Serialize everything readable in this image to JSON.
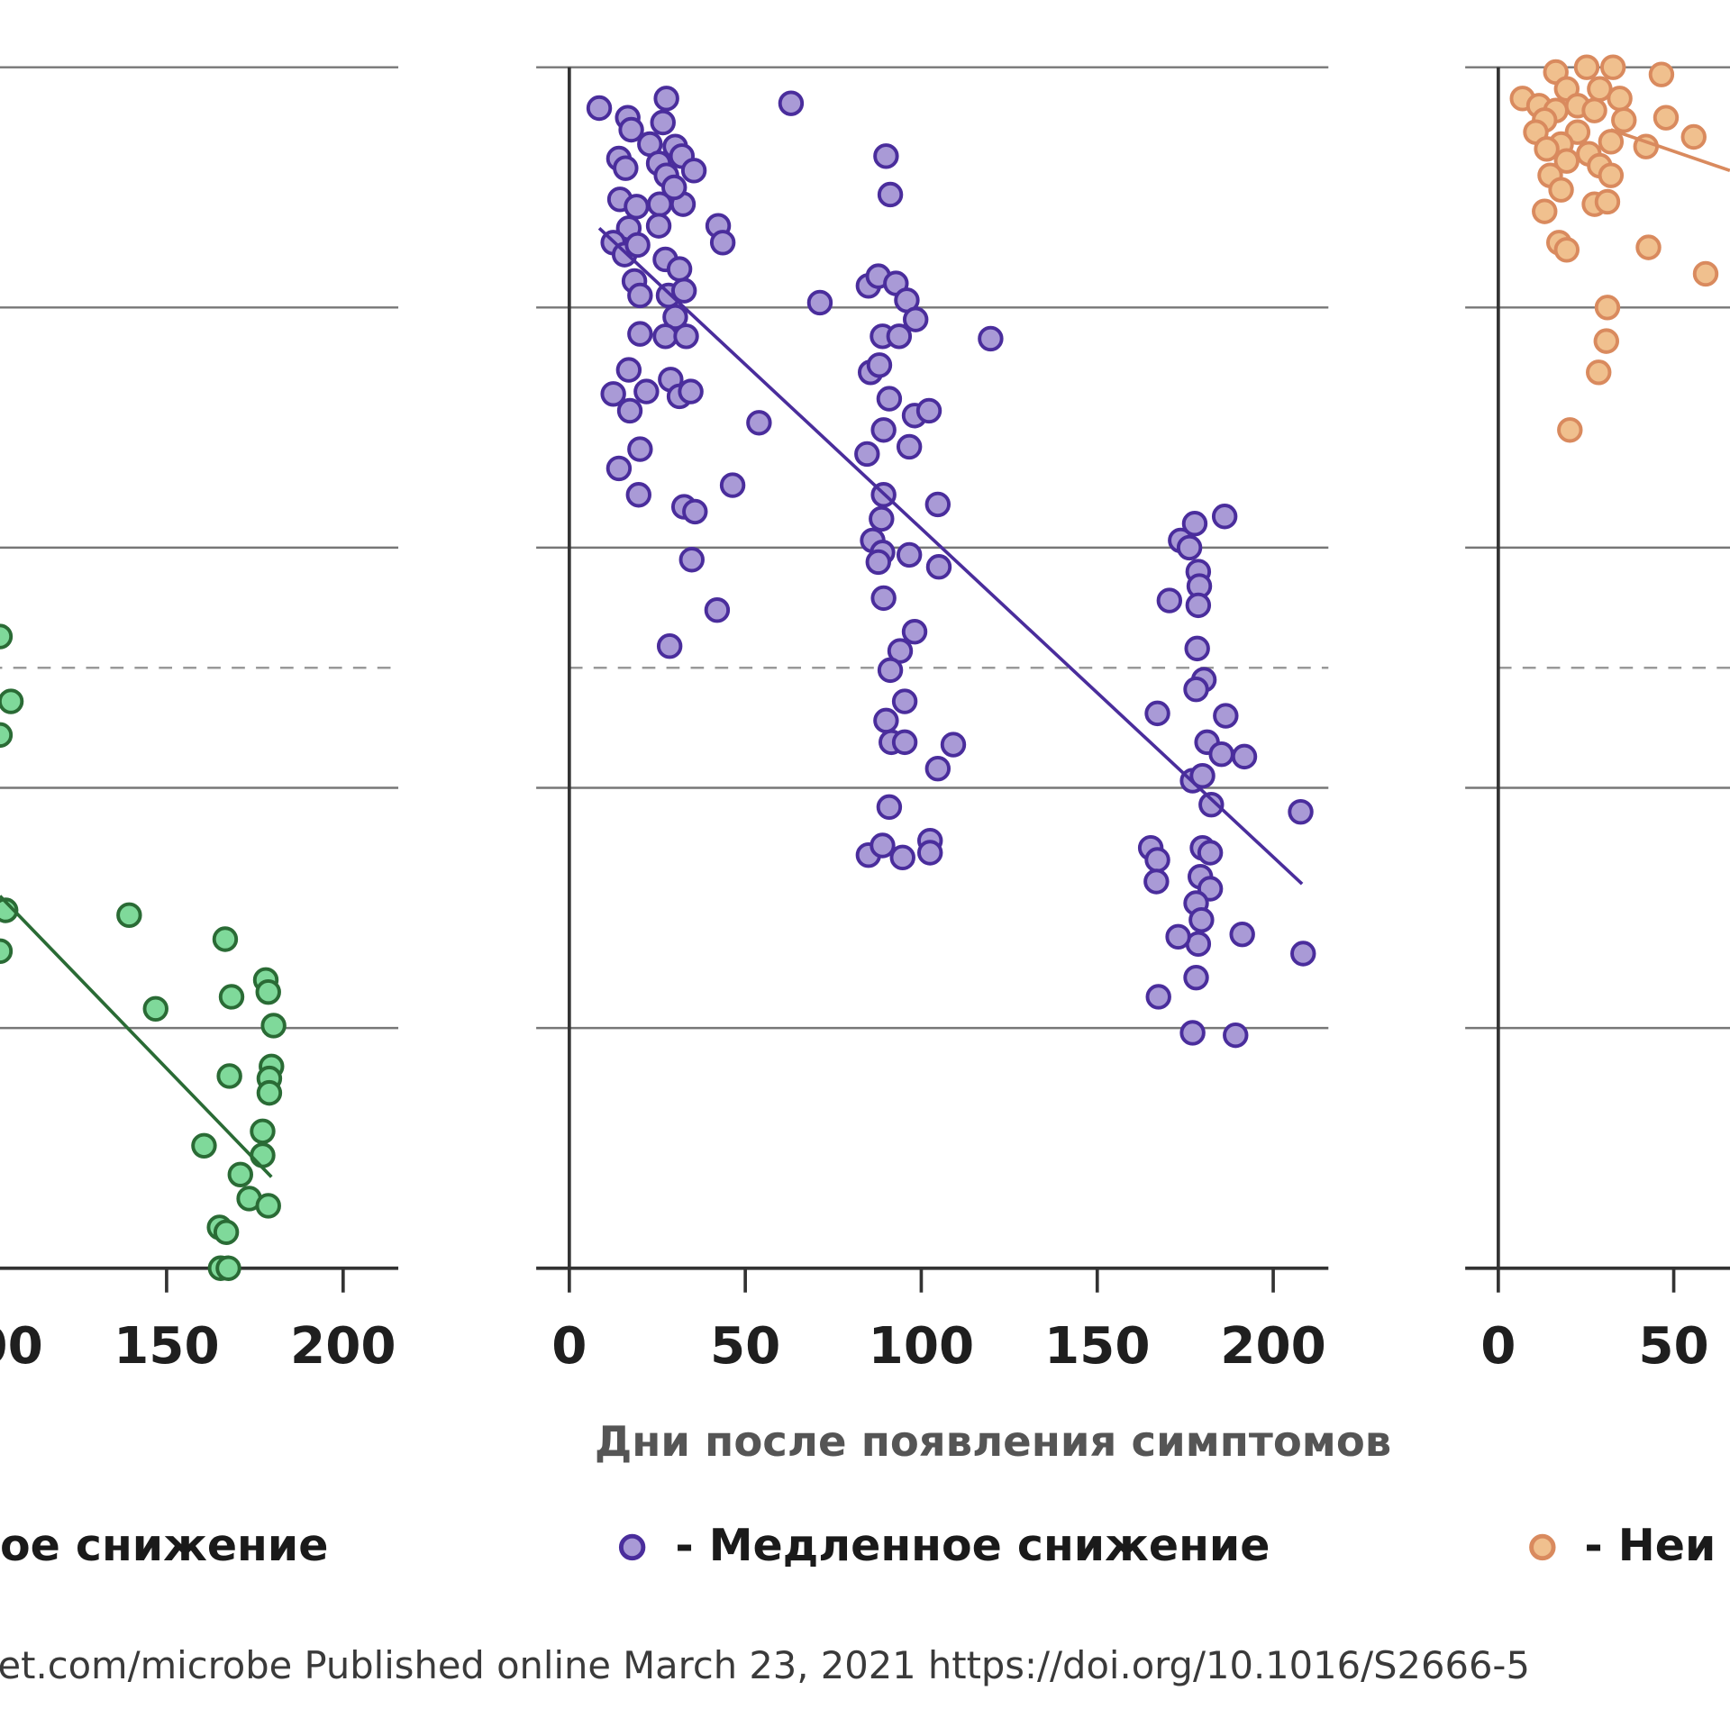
{
  "chart_data": {
    "type": "scatter",
    "xlabel": "Дни после появления симптомов",
    "x_ticks": [
      0,
      50,
      100,
      150,
      200
    ],
    "y_gridlines": [
      0,
      1,
      2,
      3,
      4,
      5
    ],
    "y_threshold_dashed": 2.5,
    "grid": true,
    "series": [
      {
        "name": "Быстрое снижение",
        "legend_visible_text": "ое снижение",
        "fill": "#7fd99a",
        "stroke": "#2a6b35",
        "line": "#2a6b35",
        "xlim": [
          0,
          215
        ],
        "trend": [
          [
            102.8,
            1.55
          ],
          [
            179.7,
            0.38
          ]
        ],
        "points": [
          [
            102.8,
            2.63
          ],
          [
            105.9,
            2.36
          ],
          [
            102.8,
            2.22
          ],
          [
            104.4,
            1.49
          ],
          [
            102.8,
            1.32
          ],
          [
            139.4,
            1.47
          ],
          [
            146.9,
            1.08
          ],
          [
            166.6,
            1.37
          ],
          [
            168.4,
            1.13
          ],
          [
            178.1,
            1.2
          ],
          [
            178.8,
            1.15
          ],
          [
            180.3,
            1.01
          ],
          [
            167.8,
            0.8
          ],
          [
            179.7,
            0.84
          ],
          [
            179.1,
            0.79
          ],
          [
            179.1,
            0.73
          ],
          [
            160.6,
            0.51
          ],
          [
            177.2,
            0.57
          ],
          [
            177.2,
            0.47
          ],
          [
            170.9,
            0.39
          ],
          [
            173.4,
            0.29
          ],
          [
            178.8,
            0.26
          ],
          [
            165.0,
            0.17
          ],
          [
            166.9,
            0.15
          ],
          [
            165.3,
            0.0
          ],
          [
            167.5,
            0.0
          ]
        ]
      },
      {
        "name": "Медленное снижение",
        "legend_visible_text": "- Медленное снижение",
        "fill": "#a99ad6",
        "stroke": "#4a2d9c",
        "line": "#4a2d9c",
        "xlim": [
          0,
          215
        ],
        "trend": [
          [
            8.5,
            4.33
          ],
          [
            208.2,
            1.6
          ]
        ],
        "points": [
          [
            8.5,
            4.83
          ],
          [
            16.6,
            4.79
          ],
          [
            17.6,
            4.74
          ],
          [
            27.6,
            4.87
          ],
          [
            26.6,
            4.77
          ],
          [
            63.0,
            4.85
          ],
          [
            14.1,
            4.62
          ],
          [
            16.0,
            4.58
          ],
          [
            22.9,
            4.68
          ],
          [
            25.4,
            4.6
          ],
          [
            30.1,
            4.67
          ],
          [
            32.0,
            4.63
          ],
          [
            35.4,
            4.57
          ],
          [
            27.6,
            4.55
          ],
          [
            14.4,
            4.45
          ],
          [
            19.1,
            4.42
          ],
          [
            25.7,
            4.43
          ],
          [
            32.3,
            4.43
          ],
          [
            29.8,
            4.5
          ],
          [
            25.4,
            4.34
          ],
          [
            16.9,
            4.33
          ],
          [
            12.5,
            4.27
          ],
          [
            15.7,
            4.22
          ],
          [
            19.4,
            4.26
          ],
          [
            27.3,
            4.2
          ],
          [
            31.3,
            4.16
          ],
          [
            18.5,
            4.11
          ],
          [
            20.1,
            4.05
          ],
          [
            28.2,
            4.05
          ],
          [
            32.6,
            4.07
          ],
          [
            30.1,
            3.96
          ],
          [
            20.1,
            3.89
          ],
          [
            27.3,
            3.88
          ],
          [
            33.2,
            3.88
          ],
          [
            16.9,
            3.74
          ],
          [
            12.5,
            3.64
          ],
          [
            21.9,
            3.65
          ],
          [
            17.2,
            3.57
          ],
          [
            28.8,
            3.7
          ],
          [
            31.3,
            3.63
          ],
          [
            34.5,
            3.65
          ],
          [
            20.1,
            3.41
          ],
          [
            14.1,
            3.33
          ],
          [
            19.7,
            3.22
          ],
          [
            32.6,
            3.17
          ],
          [
            35.7,
            3.15
          ],
          [
            34.8,
            2.95
          ],
          [
            42.3,
            4.34
          ],
          [
            43.6,
            4.27
          ],
          [
            46.4,
            3.26
          ],
          [
            42.0,
            2.74
          ],
          [
            28.5,
            2.59
          ],
          [
            53.9,
            3.52
          ],
          [
            71.2,
            4.02
          ],
          [
            90.0,
            4.63
          ],
          [
            91.2,
            4.47
          ],
          [
            85.0,
            4.09
          ],
          [
            87.8,
            4.13
          ],
          [
            92.8,
            4.1
          ],
          [
            95.9,
            4.03
          ],
          [
            98.4,
            3.95
          ],
          [
            89.0,
            3.88
          ],
          [
            93.7,
            3.88
          ],
          [
            85.6,
            3.73
          ],
          [
            88.1,
            3.76
          ],
          [
            90.9,
            3.62
          ],
          [
            89.3,
            3.49
          ],
          [
            98.1,
            3.55
          ],
          [
            102.2,
            3.57
          ],
          [
            84.6,
            3.39
          ],
          [
            96.6,
            3.42
          ],
          [
            89.3,
            3.22
          ],
          [
            104.7,
            3.18
          ],
          [
            88.7,
            3.12
          ],
          [
            86.2,
            3.03
          ],
          [
            89.0,
            2.98
          ],
          [
            87.8,
            2.94
          ],
          [
            96.6,
            2.97
          ],
          [
            105.0,
            2.92
          ],
          [
            89.3,
            2.79
          ],
          [
            98.1,
            2.65
          ],
          [
            94.0,
            2.57
          ],
          [
            91.2,
            2.49
          ],
          [
            95.3,
            2.36
          ],
          [
            90.0,
            2.28
          ],
          [
            91.5,
            2.19
          ],
          [
            95.3,
            2.19
          ],
          [
            109.1,
            2.18
          ],
          [
            104.7,
            2.08
          ],
          [
            90.9,
            1.92
          ],
          [
            85.0,
            1.72
          ],
          [
            89.0,
            1.76
          ],
          [
            94.7,
            1.71
          ],
          [
            102.5,
            1.78
          ],
          [
            102.5,
            1.73
          ],
          [
            119.7,
            3.87
          ],
          [
            173.7,
            3.03
          ],
          [
            177.7,
            3.1
          ],
          [
            186.2,
            3.13
          ],
          [
            176.2,
            3.0
          ],
          [
            178.7,
            2.9
          ],
          [
            179.0,
            2.84
          ],
          [
            178.7,
            2.76
          ],
          [
            170.5,
            2.78
          ],
          [
            178.4,
            2.58
          ],
          [
            180.3,
            2.45
          ],
          [
            178.1,
            2.41
          ],
          [
            167.1,
            2.31
          ],
          [
            186.5,
            2.3
          ],
          [
            181.2,
            2.19
          ],
          [
            185.3,
            2.14
          ],
          [
            191.8,
            2.13
          ],
          [
            177.1,
            2.03
          ],
          [
            179.9,
            2.05
          ],
          [
            182.4,
            1.93
          ],
          [
            207.8,
            1.9
          ],
          [
            165.2,
            1.75
          ],
          [
            167.1,
            1.7
          ],
          [
            166.8,
            1.61
          ],
          [
            179.9,
            1.75
          ],
          [
            182.1,
            1.73
          ],
          [
            179.3,
            1.63
          ],
          [
            182.1,
            1.58
          ],
          [
            178.1,
            1.52
          ],
          [
            179.6,
            1.45
          ],
          [
            178.7,
            1.35
          ],
          [
            173.0,
            1.38
          ],
          [
            191.2,
            1.39
          ],
          [
            208.5,
            1.31
          ],
          [
            178.1,
            1.21
          ],
          [
            167.4,
            1.13
          ],
          [
            177.1,
            0.98
          ],
          [
            189.3,
            0.97
          ]
        ]
      },
      {
        "name": "Неизменный",
        "legend_visible_text": "- Неи",
        "fill": "#f0c08e",
        "stroke": "#d98a5e",
        "line": "#d98a5e",
        "xlim": [
          0,
          70
        ],
        "trend": [
          [
            32.1,
            4.74
          ],
          [
            66.0,
            4.57
          ]
        ],
        "points": [
          [
            6.9,
            4.87
          ],
          [
            11.6,
            4.84
          ],
          [
            16.4,
            4.98
          ],
          [
            25.2,
            5.0
          ],
          [
            32.7,
            5.0
          ],
          [
            46.5,
            4.97
          ],
          [
            28.9,
            4.91
          ],
          [
            19.5,
            4.91
          ],
          [
            16.4,
            4.82
          ],
          [
            13.2,
            4.78
          ],
          [
            10.7,
            4.73
          ],
          [
            22.6,
            4.84
          ],
          [
            27.4,
            4.82
          ],
          [
            34.6,
            4.87
          ],
          [
            35.8,
            4.78
          ],
          [
            47.8,
            4.79
          ],
          [
            55.7,
            4.71
          ],
          [
            42.1,
            4.67
          ],
          [
            32.1,
            4.69
          ],
          [
            22.6,
            4.73
          ],
          [
            17.9,
            4.68
          ],
          [
            13.8,
            4.66
          ],
          [
            19.5,
            4.61
          ],
          [
            25.8,
            4.64
          ],
          [
            28.9,
            4.59
          ],
          [
            14.8,
            4.55
          ],
          [
            17.9,
            4.49
          ],
          [
            32.1,
            4.55
          ],
          [
            13.2,
            4.4
          ],
          [
            27.4,
            4.43
          ],
          [
            31.1,
            4.44
          ],
          [
            17.3,
            4.27
          ],
          [
            19.5,
            4.24
          ],
          [
            42.8,
            4.25
          ],
          [
            59.1,
            4.14
          ],
          [
            31.1,
            4.0
          ],
          [
            30.8,
            3.86
          ],
          [
            28.6,
            3.73
          ],
          [
            20.4,
            3.49
          ]
        ]
      }
    ]
  },
  "footer": "et.com/microbe Published online March 23, 2021 https://doi.org/10.1016/S2666-5"
}
